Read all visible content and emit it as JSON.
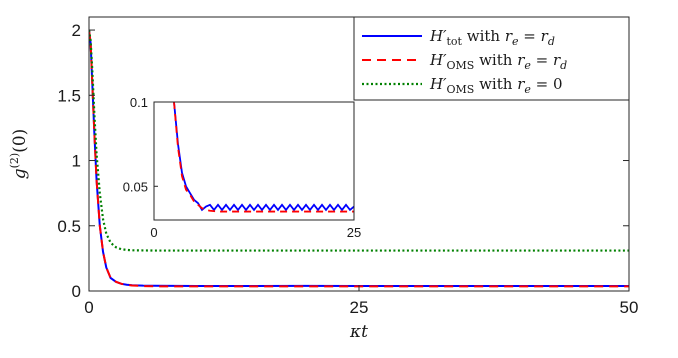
{
  "chart_data": {
    "type": "line",
    "xlabel": "κt",
    "ylabel": "g(2)(0)",
    "xlim": [
      0,
      50
    ],
    "ylim": [
      0,
      2.1
    ],
    "xticks": [
      0,
      25,
      50
    ],
    "yticks": [
      0,
      0.5,
      1,
      1.5,
      2
    ],
    "ytick_labels": [
      "0",
      "0.5",
      "1",
      "1.5",
      "2"
    ],
    "grid": false,
    "legend_position": "top-right",
    "series": [
      {
        "name": "H′tot with re = rd",
        "legend": {
          "sym": "H′",
          "sub": "tot",
          "mid": " with ",
          "var": "r",
          "varsub": "e",
          "rhs": "r",
          "rhssub": "d"
        },
        "color": "#0000ff",
        "dash": "solid",
        "x": [
          0,
          0.15,
          0.3,
          0.5,
          0.7,
          1.0,
          1.3,
          1.6,
          2.0,
          2.5,
          3.0,
          3.5,
          4.0,
          5.0,
          6.0,
          8.0,
          10,
          15,
          20,
          25,
          30,
          35,
          40,
          45,
          50
        ],
        "y": [
          2.0,
          1.9,
          1.6,
          1.2,
          0.85,
          0.5,
          0.3,
          0.18,
          0.1,
          0.07,
          0.055,
          0.048,
          0.044,
          0.041,
          0.04,
          0.039,
          0.038,
          0.038,
          0.039,
          0.038,
          0.038,
          0.038,
          0.038,
          0.038,
          0.038
        ]
      },
      {
        "name": "H′OMS with re = rd",
        "legend": {
          "sym": "H′",
          "sub": "OMS",
          "mid": " with ",
          "var": "r",
          "varsub": "e",
          "rhs": "r",
          "rhssub": "d"
        },
        "color": "#ff0000",
        "dash": "dashed",
        "x": [
          0,
          0.15,
          0.3,
          0.5,
          0.7,
          1.0,
          1.3,
          1.6,
          2.0,
          2.5,
          3.0,
          3.5,
          4.0,
          5.0,
          6.0,
          8.0,
          10,
          15,
          20,
          25,
          30,
          35,
          40,
          45,
          50
        ],
        "y": [
          2.0,
          1.9,
          1.6,
          1.2,
          0.85,
          0.5,
          0.3,
          0.18,
          0.1,
          0.07,
          0.055,
          0.047,
          0.042,
          0.038,
          0.036,
          0.035,
          0.035,
          0.035,
          0.035,
          0.035,
          0.035,
          0.035,
          0.035,
          0.035,
          0.035
        ]
      },
      {
        "name": "H′OMS with re = 0",
        "legend": {
          "sym": "H′",
          "sub": "OMS",
          "mid": " with ",
          "var": "r",
          "varsub": "e",
          "rhs": "0",
          "rhssub": ""
        },
        "color": "#008000",
        "dash": "dotted",
        "x": [
          0,
          0.15,
          0.3,
          0.5,
          0.7,
          1.0,
          1.3,
          1.6,
          2.0,
          2.5,
          3.0,
          3.5,
          4.0,
          5.0,
          6.0,
          8.0,
          10,
          15,
          20,
          25,
          30,
          35,
          40,
          45,
          50
        ],
        "y": [
          2.0,
          1.92,
          1.7,
          1.35,
          1.05,
          0.75,
          0.55,
          0.44,
          0.37,
          0.335,
          0.32,
          0.315,
          0.312,
          0.311,
          0.31,
          0.31,
          0.31,
          0.31,
          0.31,
          0.31,
          0.31,
          0.31,
          0.31,
          0.31,
          0.31
        ]
      }
    ],
    "inset": {
      "xlim": [
        0,
        25
      ],
      "ylim": [
        0.03,
        0.1
      ],
      "xticks": [
        0,
        25
      ],
      "yticks": [
        0.05,
        0.1
      ],
      "ytick_labels": [
        "0.05",
        "0.1"
      ],
      "series": [
        {
          "color": "#0000ff",
          "dash": "solid",
          "x": [
            2.5,
            3.0,
            3.5,
            4.0,
            4.5,
            5.0,
            5.5,
            6.0,
            6.5,
            7.0,
            7.5,
            8.0,
            8.5,
            9.0,
            9.5,
            10,
            10.5,
            11,
            11.5,
            12,
            12.5,
            13,
            13.5,
            14,
            14.5,
            15,
            15.5,
            16,
            16.5,
            17,
            17.5,
            18,
            18.5,
            19,
            19.5,
            20,
            20.5,
            21,
            21.5,
            22,
            22.5,
            23,
            23.5,
            24,
            24.5,
            25
          ],
          "y": [
            0.1,
            0.075,
            0.058,
            0.05,
            0.046,
            0.042,
            0.04,
            0.036,
            0.038,
            0.039,
            0.036,
            0.039,
            0.036,
            0.039,
            0.036,
            0.039,
            0.036,
            0.039,
            0.036,
            0.039,
            0.036,
            0.039,
            0.036,
            0.039,
            0.036,
            0.039,
            0.036,
            0.039,
            0.036,
            0.039,
            0.036,
            0.039,
            0.036,
            0.039,
            0.036,
            0.039,
            0.036,
            0.039,
            0.036,
            0.039,
            0.036,
            0.039,
            0.036,
            0.039,
            0.036,
            0.038
          ]
        },
        {
          "color": "#ff0000",
          "dash": "dashed",
          "x": [
            2.5,
            3.0,
            3.5,
            4.0,
            4.5,
            5.0,
            5.5,
            6.0,
            6.5,
            7.0,
            8.0,
            9.0,
            10,
            12,
            15,
            20,
            25
          ],
          "y": [
            0.1,
            0.073,
            0.056,
            0.048,
            0.045,
            0.041,
            0.039,
            0.037,
            0.036,
            0.0355,
            0.035,
            0.035,
            0.035,
            0.035,
            0.035,
            0.035,
            0.035
          ]
        }
      ]
    }
  }
}
